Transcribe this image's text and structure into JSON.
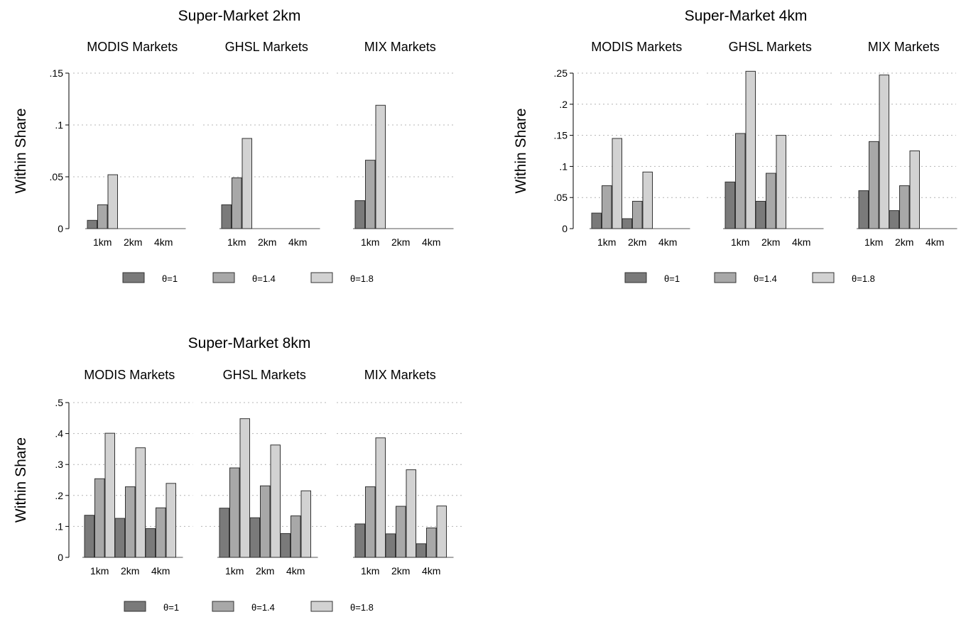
{
  "colors": {
    "theta_1": "#7a7a7a",
    "theta_1_4": "#a8a8a8",
    "theta_1_8": "#d2d2d2"
  },
  "chart_data": [
    {
      "type": "bar",
      "title": "Super-Market 2km",
      "ylabel": "Within Share",
      "ylim": [
        0,
        0.15
      ],
      "yticks": [
        0,
        0.05,
        0.1,
        0.15
      ],
      "ytick_labels": [
        "0",
        ".05",
        ".1",
        ".15"
      ],
      "grid": true,
      "legend_placement": "bottom",
      "legend": [
        "θ=1",
        "θ=1.4",
        "θ=1.8"
      ],
      "categories": [
        "1km",
        "2km",
        "4km"
      ],
      "subplots": [
        {
          "title": "MODIS Markets",
          "series": [
            {
              "name": "θ=1",
              "values": [
                0.008,
                0,
                0
              ]
            },
            {
              "name": "θ=1.4",
              "values": [
                0.023,
                0,
                0
              ]
            },
            {
              "name": "θ=1.8",
              "values": [
                0.052,
                0,
                0
              ]
            }
          ]
        },
        {
          "title": "GHSL Markets",
          "series": [
            {
              "name": "θ=1",
              "values": [
                0.023,
                0,
                0
              ]
            },
            {
              "name": "θ=1.4",
              "values": [
                0.049,
                0,
                0
              ]
            },
            {
              "name": "θ=1.8",
              "values": [
                0.087,
                0,
                0
              ]
            }
          ]
        },
        {
          "title": "MIX Markets",
          "series": [
            {
              "name": "θ=1",
              "values": [
                0.027,
                0,
                0
              ]
            },
            {
              "name": "θ=1.4",
              "values": [
                0.066,
                0,
                0
              ]
            },
            {
              "name": "θ=1.8",
              "values": [
                0.119,
                0,
                0
              ]
            }
          ]
        }
      ]
    },
    {
      "type": "bar",
      "title": "Super-Market 4km",
      "ylabel": "Within Share",
      "ylim": [
        0,
        0.25
      ],
      "yticks": [
        0,
        0.05,
        0.1,
        0.15,
        0.2,
        0.25
      ],
      "ytick_labels": [
        "0",
        ".05",
        ".1",
        ".15",
        ".2",
        ".25"
      ],
      "grid": true,
      "legend_placement": "bottom",
      "legend": [
        "θ=1",
        "θ=1.4",
        "θ=1.8"
      ],
      "categories": [
        "1km",
        "2km",
        "4km"
      ],
      "subplots": [
        {
          "title": "MODIS Markets",
          "series": [
            {
              "name": "θ=1",
              "values": [
                0.025,
                0.016,
                0
              ]
            },
            {
              "name": "θ=1.4",
              "values": [
                0.069,
                0.044,
                0
              ]
            },
            {
              "name": "θ=1.8",
              "values": [
                0.145,
                0.091,
                0
              ]
            }
          ]
        },
        {
          "title": "GHSL Markets",
          "series": [
            {
              "name": "θ=1",
              "values": [
                0.075,
                0.044,
                0
              ]
            },
            {
              "name": "θ=1.4",
              "values": [
                0.153,
                0.089,
                0
              ]
            },
            {
              "name": "θ=1.8",
              "values": [
                0.253,
                0.15,
                0
              ]
            }
          ]
        },
        {
          "title": "MIX Markets",
          "series": [
            {
              "name": "θ=1",
              "values": [
                0.061,
                0.029,
                0
              ]
            },
            {
              "name": "θ=1.4",
              "values": [
                0.14,
                0.069,
                0
              ]
            },
            {
              "name": "θ=1.8",
              "values": [
                0.247,
                0.125,
                0
              ]
            }
          ]
        }
      ]
    },
    {
      "type": "bar",
      "title": "Super-Market 8km",
      "ylabel": "Within Share",
      "ylim": [
        0,
        0.5
      ],
      "yticks": [
        0,
        0.1,
        0.2,
        0.3,
        0.4,
        0.5
      ],
      "ytick_labels": [
        "0",
        ".1",
        ".2",
        ".3",
        ".4",
        ".5"
      ],
      "grid": true,
      "legend_placement": "bottom",
      "legend": [
        "θ=1",
        "θ=1.4",
        "θ=1.8"
      ],
      "categories": [
        "1km",
        "2km",
        "4km"
      ],
      "subplots": [
        {
          "title": "MODIS Markets",
          "series": [
            {
              "name": "θ=1",
              "values": [
                0.136,
                0.126,
                0.093
              ]
            },
            {
              "name": "θ=1.4",
              "values": [
                0.254,
                0.228,
                0.16
              ]
            },
            {
              "name": "θ=1.8",
              "values": [
                0.401,
                0.354,
                0.239
              ]
            }
          ]
        },
        {
          "title": "GHSL Markets",
          "series": [
            {
              "name": "θ=1",
              "values": [
                0.159,
                0.128,
                0.077
              ]
            },
            {
              "name": "θ=1.4",
              "values": [
                0.289,
                0.231,
                0.134
              ]
            },
            {
              "name": "θ=1.8",
              "values": [
                0.448,
                0.363,
                0.215
              ]
            }
          ]
        },
        {
          "title": "MIX Markets",
          "series": [
            {
              "name": "θ=1",
              "values": [
                0.108,
                0.076,
                0.044
              ]
            },
            {
              "name": "θ=1.4",
              "values": [
                0.228,
                0.165,
                0.095
              ]
            },
            {
              "name": "θ=1.8",
              "values": [
                0.386,
                0.283,
                0.166
              ]
            }
          ]
        }
      ]
    }
  ]
}
